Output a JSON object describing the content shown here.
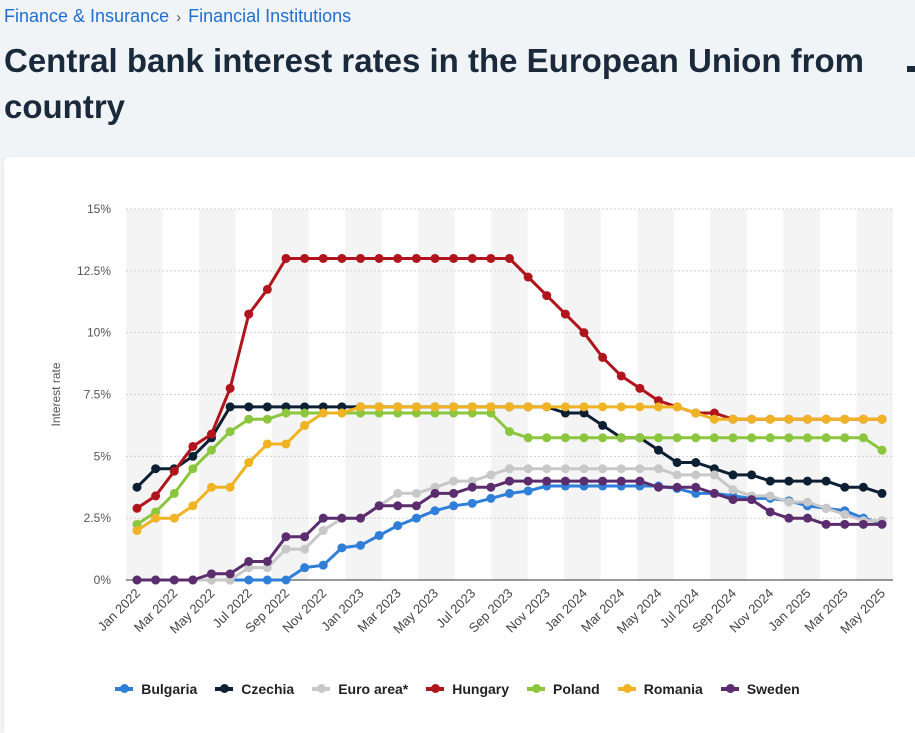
{
  "breadcrumb": {
    "items": [
      "Finance & Insurance",
      "Financial Institutions"
    ],
    "separator": "›"
  },
  "page": {
    "title": "Central bank interest rates in the European Union from",
    "title_line2": "country"
  },
  "chart_data": {
    "type": "line",
    "x": [
      "Jan 2022",
      "Feb 2022",
      "Mar 2022",
      "Apr 2022",
      "May 2022",
      "Jun 2022",
      "Jul 2022",
      "Aug 2022",
      "Sep 2022",
      "Oct 2022",
      "Nov 2022",
      "Dec 2022",
      "Jan 2023",
      "Feb 2023",
      "Mar 2023",
      "Apr 2023",
      "May 2023",
      "Jun 2023",
      "Jul 2023",
      "Aug 2023",
      "Sep 2023",
      "Oct 2023",
      "Nov 2023",
      "Dec 2023",
      "Jan 2024",
      "Feb 2024",
      "Mar 2024",
      "Apr 2024",
      "May 2024",
      "Jun 2024",
      "Jul 2024",
      "Aug 2024",
      "Sep 2024",
      "Oct 2024",
      "Nov 2024",
      "Dec 2024",
      "Jan 2025",
      "Feb 2025",
      "Mar 2025",
      "Apr 2025",
      "May 2025"
    ],
    "tick_labels": [
      "Jan 2022",
      "Mar 2022",
      "May 2022",
      "Jul 2022",
      "Sep 2022",
      "Nov 2022",
      "Jan 2023",
      "Mar 2023",
      "May 2023",
      "Jul 2023",
      "Sep 2023",
      "Nov 2023",
      "Jan 2024",
      "Mar 2024",
      "May 2024",
      "Jul 2024",
      "Sep 2024",
      "Nov 2024",
      "Jan 2025",
      "Mar 2025",
      "May 2025"
    ],
    "ylabel": "Interest rate",
    "ylim": [
      0,
      15
    ],
    "yticks": [
      0,
      2.5,
      5,
      7.5,
      10,
      12.5,
      15
    ],
    "ytick_labels": [
      "0%",
      "2.5%",
      "5%",
      "7.5%",
      "10%",
      "12.5%",
      "15%"
    ],
    "grid": true,
    "legend_position": "bottom",
    "series": [
      {
        "name": "Bulgaria",
        "color": "#2f7ed8",
        "values": [
          0,
          0,
          0,
          0,
          0,
          0,
          0,
          0,
          0,
          0.5,
          0.6,
          1.3,
          1.4,
          1.8,
          2.2,
          2.5,
          2.8,
          3.0,
          3.1,
          3.3,
          3.5,
          3.6,
          3.8,
          3.8,
          3.8,
          3.8,
          3.8,
          3.8,
          3.8,
          3.7,
          3.5,
          3.5,
          3.4,
          3.3,
          3.3,
          3.2,
          3.0,
          2.9,
          2.8,
          2.5,
          2.3
        ]
      },
      {
        "name": "Czechia",
        "color": "#0d2033",
        "values": [
          3.75,
          4.5,
          4.5,
          5.0,
          5.75,
          7.0,
          7.0,
          7.0,
          7.0,
          7.0,
          7.0,
          7.0,
          7.0,
          7.0,
          7.0,
          7.0,
          7.0,
          7.0,
          7.0,
          7.0,
          7.0,
          7.0,
          7.0,
          6.75,
          6.75,
          6.25,
          5.75,
          5.75,
          5.25,
          4.75,
          4.75,
          4.5,
          4.25,
          4.25,
          4.0,
          4.0,
          4.0,
          4.0,
          3.75,
          3.75,
          3.5
        ]
      },
      {
        "name": "Euro area*",
        "color": "#c8c8c8",
        "values": [
          0,
          0,
          0,
          0,
          0,
          0,
          0.5,
          0.5,
          1.25,
          1.25,
          2.0,
          2.5,
          2.5,
          3.0,
          3.5,
          3.5,
          3.75,
          4.0,
          4.0,
          4.25,
          4.5,
          4.5,
          4.5,
          4.5,
          4.5,
          4.5,
          4.5,
          4.5,
          4.5,
          4.25,
          4.25,
          4.25,
          3.65,
          3.4,
          3.4,
          3.15,
          3.15,
          2.9,
          2.65,
          2.4,
          2.4
        ]
      },
      {
        "name": "Hungary",
        "color": "#b0141c",
        "values": [
          2.9,
          3.4,
          4.4,
          5.4,
          5.9,
          7.75,
          10.75,
          11.75,
          13.0,
          13.0,
          13.0,
          13.0,
          13.0,
          13.0,
          13.0,
          13.0,
          13.0,
          13.0,
          13.0,
          13.0,
          13.0,
          12.25,
          11.5,
          10.75,
          10.0,
          9.0,
          8.25,
          7.75,
          7.25,
          7.0,
          6.75,
          6.75,
          6.5,
          6.5,
          6.5,
          6.5,
          6.5,
          6.5,
          6.5,
          6.5,
          6.5
        ]
      },
      {
        "name": "Poland",
        "color": "#8cc63f",
        "values": [
          2.25,
          2.75,
          3.5,
          4.5,
          5.25,
          6.0,
          6.5,
          6.5,
          6.75,
          6.75,
          6.75,
          6.75,
          6.75,
          6.75,
          6.75,
          6.75,
          6.75,
          6.75,
          6.75,
          6.75,
          6.0,
          5.75,
          5.75,
          5.75,
          5.75,
          5.75,
          5.75,
          5.75,
          5.75,
          5.75,
          5.75,
          5.75,
          5.75,
          5.75,
          5.75,
          5.75,
          5.75,
          5.75,
          5.75,
          5.75,
          5.25
        ]
      },
      {
        "name": "Romania",
        "color": "#f0b323",
        "values": [
          2.0,
          2.5,
          2.5,
          3.0,
          3.75,
          3.75,
          4.75,
          5.5,
          5.5,
          6.25,
          6.75,
          6.75,
          7.0,
          7.0,
          7.0,
          7.0,
          7.0,
          7.0,
          7.0,
          7.0,
          7.0,
          7.0,
          7.0,
          7.0,
          7.0,
          7.0,
          7.0,
          7.0,
          7.0,
          7.0,
          6.75,
          6.5,
          6.5,
          6.5,
          6.5,
          6.5,
          6.5,
          6.5,
          6.5,
          6.5,
          6.5
        ]
      },
      {
        "name": "Sweden",
        "color": "#5c2d6e",
        "values": [
          0,
          0,
          0,
          0,
          0.25,
          0.25,
          0.75,
          0.75,
          1.75,
          1.75,
          2.5,
          2.5,
          2.5,
          3.0,
          3.0,
          3.0,
          3.5,
          3.5,
          3.75,
          3.75,
          4.0,
          4.0,
          4.0,
          4.0,
          4.0,
          4.0,
          4.0,
          4.0,
          3.75,
          3.75,
          3.75,
          3.5,
          3.25,
          3.25,
          2.75,
          2.5,
          2.5,
          2.25,
          2.25,
          2.25,
          2.25
        ]
      }
    ]
  }
}
